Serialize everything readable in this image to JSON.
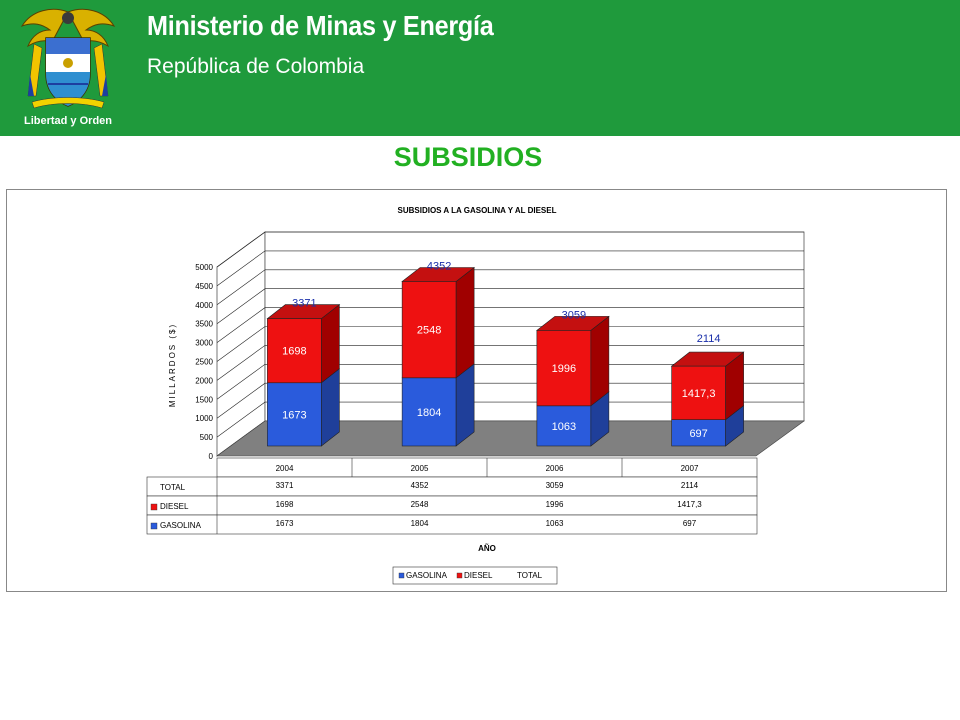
{
  "header": {
    "title": "Ministerio de Minas y Energía",
    "subtitle": "República de Colombia",
    "motto": "Libertad y Orden",
    "background_color": "#1f9a3c"
  },
  "page_title": "SUBSIDIOS",
  "chart_data": {
    "type": "bar",
    "stacked": true,
    "three_d": true,
    "title": "SUBSIDIOS A LA GASOLINA Y AL DIESEL",
    "xlabel": "AÑO",
    "ylabel": "MILLARDOS ($)",
    "ylim": [
      0,
      5000
    ],
    "yticks": [
      "0",
      "500",
      "1000",
      "1500",
      "2000",
      "2500",
      "3000",
      "3500",
      "4000",
      "4500",
      "5000"
    ],
    "categories": [
      "2004",
      "2005",
      "2006",
      "2007"
    ],
    "series": [
      {
        "name": "GASOLINA",
        "values": [
          1673,
          1804,
          1063,
          697
        ],
        "labels": [
          "1673",
          "1804",
          "1063",
          "697"
        ],
        "color": "#2a5bdc"
      },
      {
        "name": "DIESEL",
        "values": [
          1698,
          2548,
          1996,
          1417.3
        ],
        "labels": [
          "1698",
          "2548",
          "1996",
          "1417,3"
        ],
        "color": "#ee1111"
      }
    ],
    "total": {
      "name": "TOTAL",
      "values": [
        3371,
        4352,
        3059,
        2114
      ],
      "labels": [
        "3371",
        "4352",
        "3059",
        "2114"
      ],
      "color": "#1a2faa"
    },
    "data_table": true,
    "legend": {
      "position": "bottom",
      "entries": [
        "GASOLINA",
        "DIESEL",
        "TOTAL"
      ]
    },
    "grid": true
  }
}
